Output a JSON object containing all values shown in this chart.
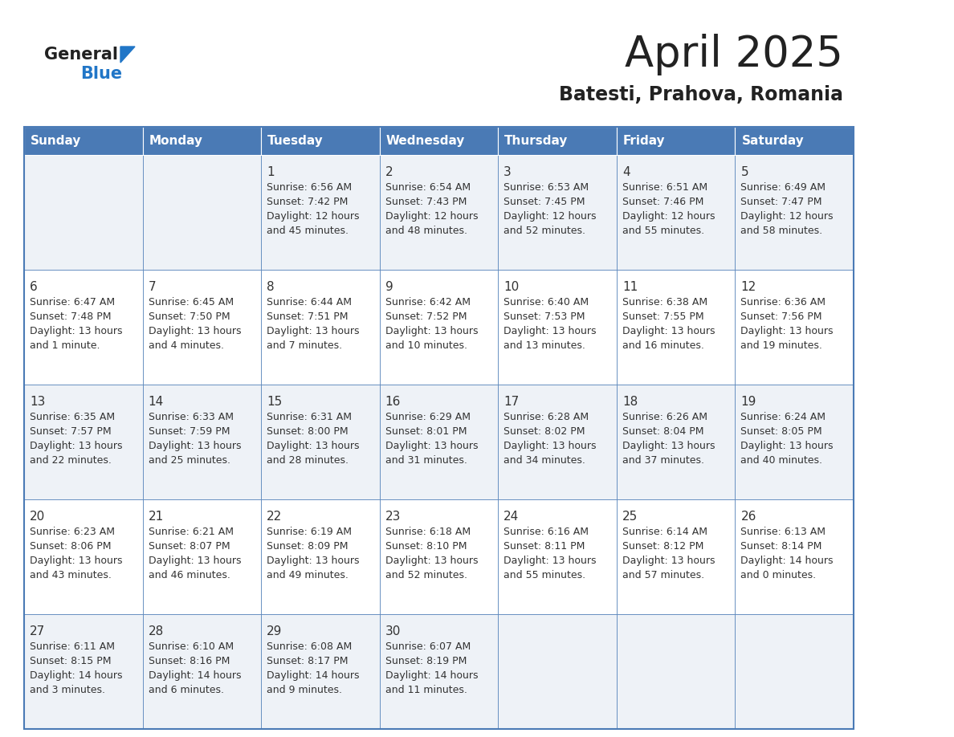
{
  "title": "April 2025",
  "subtitle": "Batesti, Prahova, Romania",
  "header_color": "#4a7ab5",
  "header_text_color": "#ffffff",
  "cell_bg_even": "#eef2f7",
  "cell_bg_odd": "#ffffff",
  "border_color": "#4a7ab5",
  "days_of_week": [
    "Sunday",
    "Monday",
    "Tuesday",
    "Wednesday",
    "Thursday",
    "Friday",
    "Saturday"
  ],
  "text_color": "#333333",
  "day_num_color": "#333333",
  "logo_general_color": "#222222",
  "logo_blue_color": "#2176c7",
  "logo_triangle_color": "#2176c7",
  "title_color": "#222222",
  "subtitle_color": "#222222",
  "weeks": [
    [
      {
        "day": "",
        "sunrise": "",
        "sunset": "",
        "daylight": ""
      },
      {
        "day": "",
        "sunrise": "",
        "sunset": "",
        "daylight": ""
      },
      {
        "day": "1",
        "sunrise": "6:56 AM",
        "sunset": "7:42 PM",
        "daylight": "12 hours and 45 minutes."
      },
      {
        "day": "2",
        "sunrise": "6:54 AM",
        "sunset": "7:43 PM",
        "daylight": "12 hours and 48 minutes."
      },
      {
        "day": "3",
        "sunrise": "6:53 AM",
        "sunset": "7:45 PM",
        "daylight": "12 hours and 52 minutes."
      },
      {
        "day": "4",
        "sunrise": "6:51 AM",
        "sunset": "7:46 PM",
        "daylight": "12 hours and 55 minutes."
      },
      {
        "day": "5",
        "sunrise": "6:49 AM",
        "sunset": "7:47 PM",
        "daylight": "12 hours and 58 minutes."
      }
    ],
    [
      {
        "day": "6",
        "sunrise": "6:47 AM",
        "sunset": "7:48 PM",
        "daylight": "13 hours and 1 minute."
      },
      {
        "day": "7",
        "sunrise": "6:45 AM",
        "sunset": "7:50 PM",
        "daylight": "13 hours and 4 minutes."
      },
      {
        "day": "8",
        "sunrise": "6:44 AM",
        "sunset": "7:51 PM",
        "daylight": "13 hours and 7 minutes."
      },
      {
        "day": "9",
        "sunrise": "6:42 AM",
        "sunset": "7:52 PM",
        "daylight": "13 hours and 10 minutes."
      },
      {
        "day": "10",
        "sunrise": "6:40 AM",
        "sunset": "7:53 PM",
        "daylight": "13 hours and 13 minutes."
      },
      {
        "day": "11",
        "sunrise": "6:38 AM",
        "sunset": "7:55 PM",
        "daylight": "13 hours and 16 minutes."
      },
      {
        "day": "12",
        "sunrise": "6:36 AM",
        "sunset": "7:56 PM",
        "daylight": "13 hours and 19 minutes."
      }
    ],
    [
      {
        "day": "13",
        "sunrise": "6:35 AM",
        "sunset": "7:57 PM",
        "daylight": "13 hours and 22 minutes."
      },
      {
        "day": "14",
        "sunrise": "6:33 AM",
        "sunset": "7:59 PM",
        "daylight": "13 hours and 25 minutes."
      },
      {
        "day": "15",
        "sunrise": "6:31 AM",
        "sunset": "8:00 PM",
        "daylight": "13 hours and 28 minutes."
      },
      {
        "day": "16",
        "sunrise": "6:29 AM",
        "sunset": "8:01 PM",
        "daylight": "13 hours and 31 minutes."
      },
      {
        "day": "17",
        "sunrise": "6:28 AM",
        "sunset": "8:02 PM",
        "daylight": "13 hours and 34 minutes."
      },
      {
        "day": "18",
        "sunrise": "6:26 AM",
        "sunset": "8:04 PM",
        "daylight": "13 hours and 37 minutes."
      },
      {
        "day": "19",
        "sunrise": "6:24 AM",
        "sunset": "8:05 PM",
        "daylight": "13 hours and 40 minutes."
      }
    ],
    [
      {
        "day": "20",
        "sunrise": "6:23 AM",
        "sunset": "8:06 PM",
        "daylight": "13 hours and 43 minutes."
      },
      {
        "day": "21",
        "sunrise": "6:21 AM",
        "sunset": "8:07 PM",
        "daylight": "13 hours and 46 minutes."
      },
      {
        "day": "22",
        "sunrise": "6:19 AM",
        "sunset": "8:09 PM",
        "daylight": "13 hours and 49 minutes."
      },
      {
        "day": "23",
        "sunrise": "6:18 AM",
        "sunset": "8:10 PM",
        "daylight": "13 hours and 52 minutes."
      },
      {
        "day": "24",
        "sunrise": "6:16 AM",
        "sunset": "8:11 PM",
        "daylight": "13 hours and 55 minutes."
      },
      {
        "day": "25",
        "sunrise": "6:14 AM",
        "sunset": "8:12 PM",
        "daylight": "13 hours and 57 minutes."
      },
      {
        "day": "26",
        "sunrise": "6:13 AM",
        "sunset": "8:14 PM",
        "daylight": "14 hours and 0 minutes."
      }
    ],
    [
      {
        "day": "27",
        "sunrise": "6:11 AM",
        "sunset": "8:15 PM",
        "daylight": "14 hours and 3 minutes."
      },
      {
        "day": "28",
        "sunrise": "6:10 AM",
        "sunset": "8:16 PM",
        "daylight": "14 hours and 6 minutes."
      },
      {
        "day": "29",
        "sunrise": "6:08 AM",
        "sunset": "8:17 PM",
        "daylight": "14 hours and 9 minutes."
      },
      {
        "day": "30",
        "sunrise": "6:07 AM",
        "sunset": "8:19 PM",
        "daylight": "14 hours and 11 minutes."
      },
      {
        "day": "",
        "sunrise": "",
        "sunset": "",
        "daylight": ""
      },
      {
        "day": "",
        "sunrise": "",
        "sunset": "",
        "daylight": ""
      },
      {
        "day": "",
        "sunrise": "",
        "sunset": "",
        "daylight": ""
      }
    ]
  ]
}
